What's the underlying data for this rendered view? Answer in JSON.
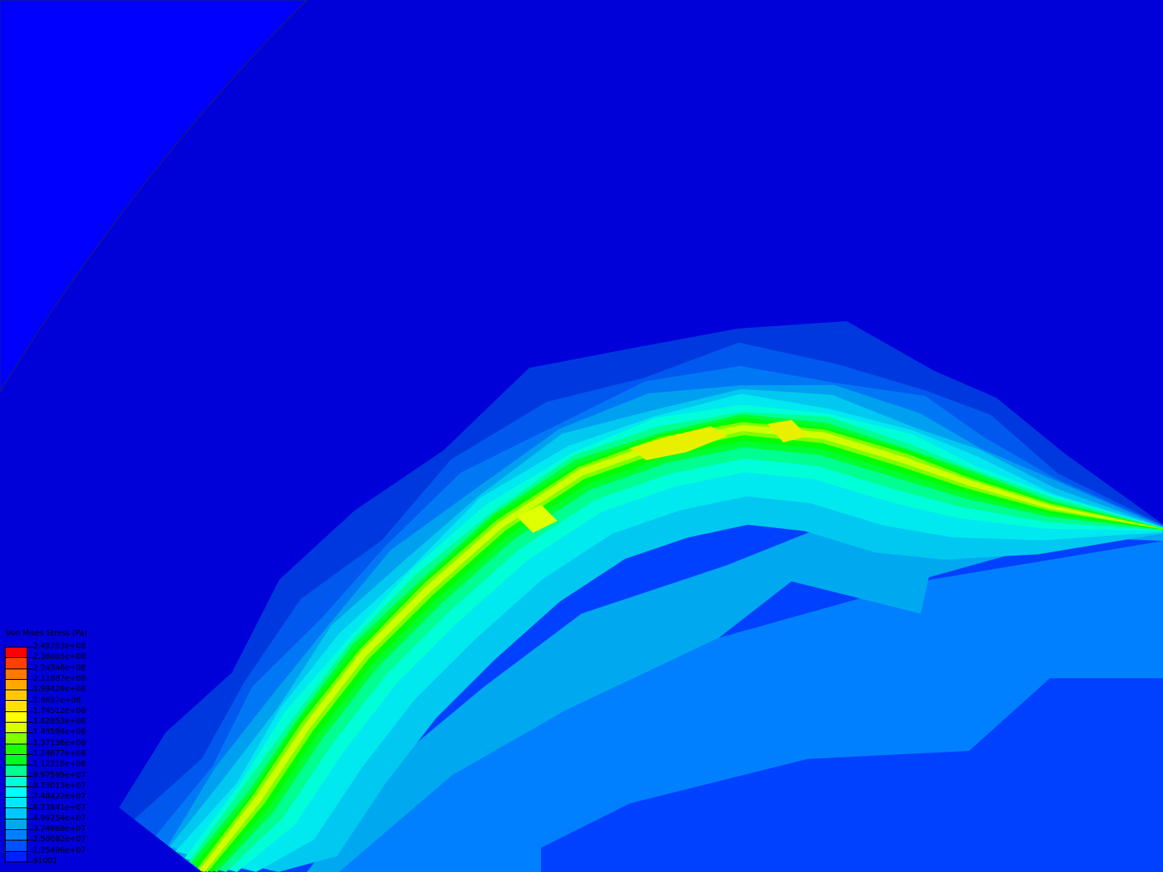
{
  "legend": {
    "title": "Von Mises Stress (Pa)",
    "labels": [
      "2.49263e+08",
      "2.36805e+08",
      "2.24346e+08",
      "2.11887e+08",
      "1.99429e+08",
      "1.8697e+08",
      "1.74512e+08",
      "1.62053e+08",
      "1.49594e+08",
      "1.37136e+08",
      "1.24677e+08",
      "1.12218e+08",
      "9.97599e+07",
      "8.73013e+07",
      "7.48427e+07",
      "6.23841e+07",
      "4.99254e+07",
      "3.74668e+07",
      "2.50082e+07",
      "1.25496e+07",
      "91001"
    ],
    "colors": [
      "#ff0000",
      "#ff4000",
      "#ff7800",
      "#ffa800",
      "#ffc800",
      "#ffe000",
      "#ffff00",
      "#d8ff00",
      "#80ff00",
      "#20ff00",
      "#00ff20",
      "#00ff90",
      "#00ffd8",
      "#00ffff",
      "#00e8ff",
      "#00c8ff",
      "#00a8f0",
      "#0080ff",
      "#0050ff",
      "#0020ff"
    ]
  },
  "colors": {
    "background": "#0000d8",
    "outer_part": "#0000ff"
  }
}
